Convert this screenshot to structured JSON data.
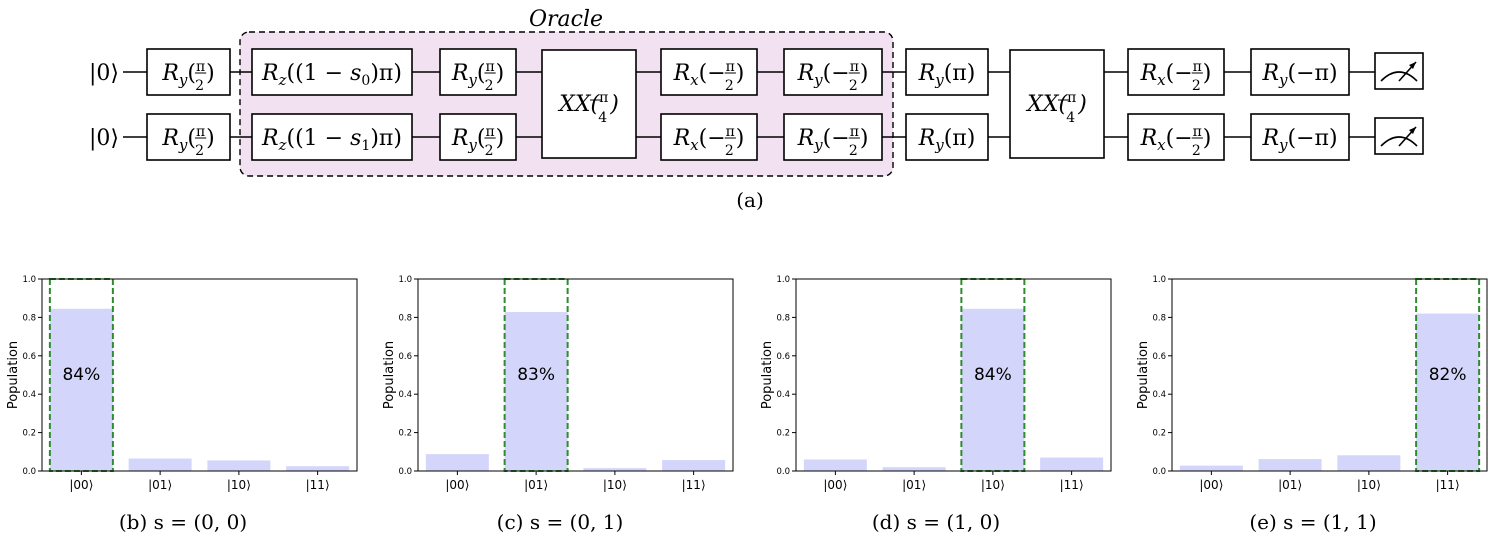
{
  "circuit": {
    "caption": "(a)",
    "oracle_label": "Oracle",
    "input_states": [
      "|0⟩",
      "|0⟩"
    ],
    "oracle_color": "#f1e1f1",
    "qubit0_gates": [
      "Ry(π/2)",
      "Rz((1 − s0)π)",
      "Ry(π/2)",
      "Rx(−π/2)",
      "Ry(−π/2)",
      "Ry(π)",
      "Rx(−π/2)",
      "Ry(−π)"
    ],
    "qubit1_gates": [
      "Ry(π/2)",
      "Rz((1 − s1)π)",
      "Ry(π/2)",
      "Rx(−π/2)",
      "Ry(−π/2)",
      "Ry(π)",
      "Rx(−π/2)",
      "Ry(−π)"
    ],
    "two_qubit_gates": [
      "XX(π/4)",
      "XX(π/4)"
    ],
    "measurements": [
      "meter-icon",
      "meter-icon"
    ]
  },
  "chart_data": [
    {
      "type": "bar",
      "caption": "(b) s = (0, 0)",
      "categories": [
        "|00⟩",
        "|01⟩",
        "|10⟩",
        "|11⟩"
      ],
      "values": [
        0.845,
        0.065,
        0.055,
        0.025
      ],
      "ylabel": "Population",
      "ylim": [
        0,
        1.0
      ],
      "yticks": [
        "0.0",
        "0.2",
        "0.4",
        "0.6",
        "0.8",
        "1.0"
      ],
      "highlight_index": 0,
      "annotation": "84%",
      "bar_color": "#d3d6fa",
      "highlight_color": "#2e8b2e"
    },
    {
      "type": "bar",
      "caption": "(c) s = (0, 1)",
      "categories": [
        "|00⟩",
        "|01⟩",
        "|10⟩",
        "|11⟩"
      ],
      "values": [
        0.088,
        0.828,
        0.015,
        0.057
      ],
      "ylabel": "Population",
      "ylim": [
        0,
        1.0
      ],
      "yticks": [
        "0.0",
        "0.2",
        "0.4",
        "0.6",
        "0.8",
        "1.0"
      ],
      "highlight_index": 1,
      "annotation": "83%",
      "bar_color": "#d3d6fa",
      "highlight_color": "#2e8b2e"
    },
    {
      "type": "bar",
      "caption": "(d) s = (1, 0)",
      "categories": [
        "|00⟩",
        "|01⟩",
        "|10⟩",
        "|11⟩"
      ],
      "values": [
        0.06,
        0.02,
        0.845,
        0.07
      ],
      "ylabel": "Population",
      "ylim": [
        0,
        1.0
      ],
      "yticks": [
        "0.0",
        "0.2",
        "0.4",
        "0.6",
        "0.8",
        "1.0"
      ],
      "highlight_index": 2,
      "annotation": "84%",
      "bar_color": "#d3d6fa",
      "highlight_color": "#2e8b2e"
    },
    {
      "type": "bar",
      "caption": "(e) s = (1, 1)",
      "categories": [
        "|00⟩",
        "|01⟩",
        "|10⟩",
        "|11⟩"
      ],
      "values": [
        0.028,
        0.062,
        0.082,
        0.82
      ],
      "ylabel": "Population",
      "ylim": [
        0,
        1.0
      ],
      "yticks": [
        "0.0",
        "0.2",
        "0.4",
        "0.6",
        "0.8",
        "1.0"
      ],
      "highlight_index": 3,
      "annotation": "82%",
      "bar_color": "#d3d6fa",
      "highlight_color": "#2e8b2e"
    }
  ]
}
